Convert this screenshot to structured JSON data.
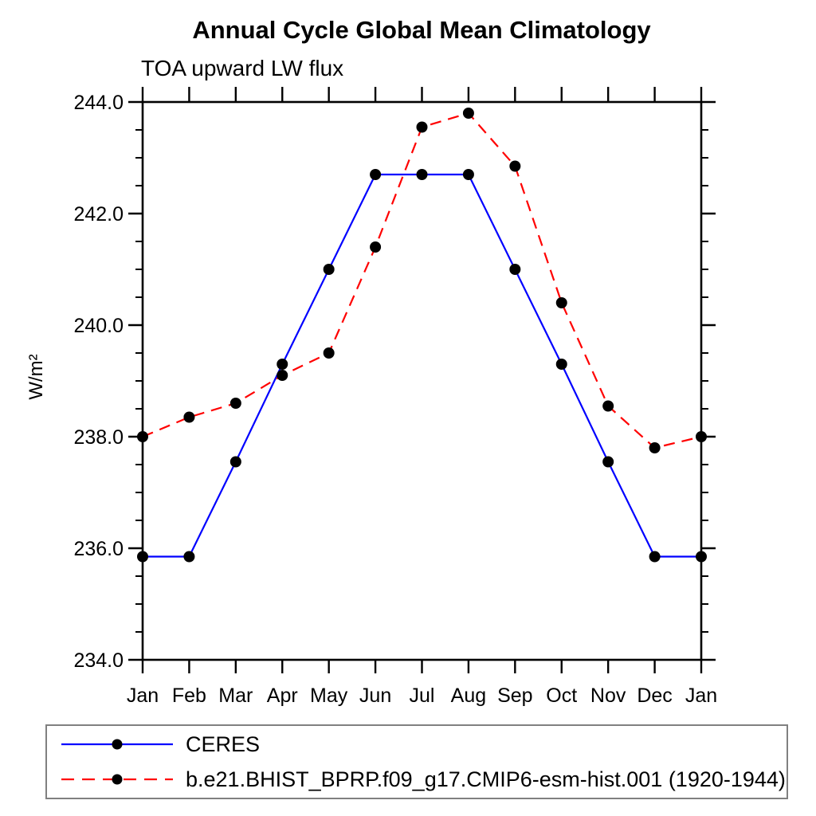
{
  "chart_data": {
    "type": "line",
    "title": "Annual Cycle Global Mean Climatology",
    "subtitle": "TOA upward LW flux",
    "xlabel": "",
    "ylabel": "W/m²",
    "ylim": [
      234.0,
      244.0
    ],
    "y_ticks": [
      234.0,
      236.0,
      238.0,
      240.0,
      242.0,
      244.0
    ],
    "y_tick_labels": [
      "234.0",
      "236.0",
      "238.0",
      "240.0",
      "242.0",
      "244.0"
    ],
    "y_minor_step": 0.5,
    "x_tick_labels": [
      "Jan",
      "Feb",
      "Mar",
      "Apr",
      "May",
      "Jun",
      "Jul",
      "Aug",
      "Sep",
      "Oct",
      "Nov",
      "Dec",
      "Jan"
    ],
    "grid": false,
    "legend_position": "bottom",
    "axis_color": "#000000",
    "series": [
      {
        "name": "CERES",
        "color": "#0000ff",
        "style": "solid",
        "marker": "circle",
        "marker_color": "#000000",
        "values": [
          235.85,
          235.85,
          237.55,
          239.3,
          241.0,
          242.7,
          242.7,
          242.7,
          241.0,
          239.3,
          237.55,
          235.85,
          235.85
        ]
      },
      {
        "name": "b.e21.BHIST_BPRP.f09_g17.CMIP6-esm-hist.001 (1920-1944)",
        "color": "#ff0000",
        "style": "dashed",
        "marker": "circle",
        "marker_color": "#000000",
        "values": [
          238.0,
          238.35,
          238.6,
          239.1,
          239.5,
          241.4,
          243.55,
          243.8,
          242.85,
          240.4,
          238.55,
          237.8,
          238.0
        ]
      }
    ]
  }
}
